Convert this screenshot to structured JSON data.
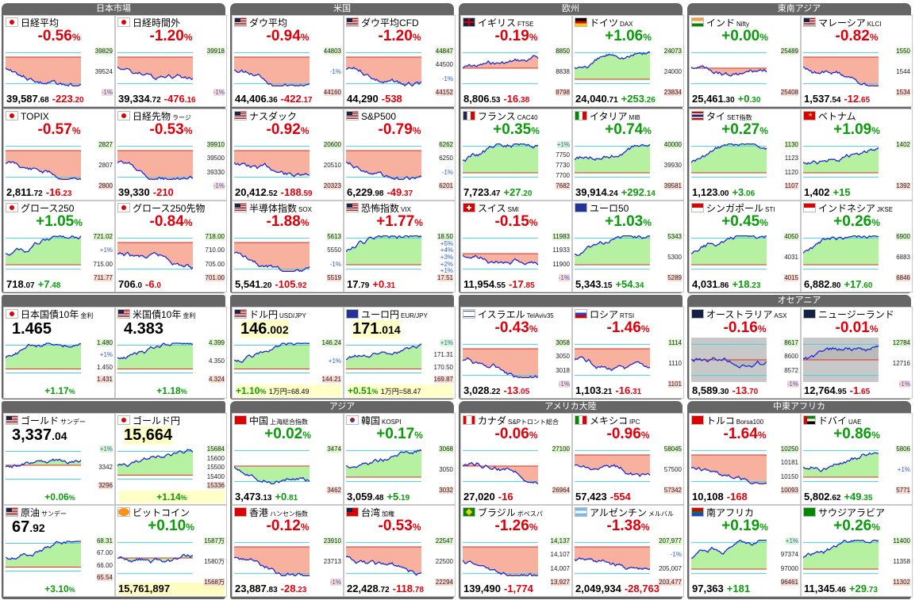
{
  "sections": [
    {
      "title": "日本市場"
    },
    {
      "title": "米国"
    },
    {
      "title": "欧州"
    },
    {
      "title": "東南アジア"
    },
    {
      "title": "オセアニア"
    },
    {
      "title": "アジア"
    },
    {
      "title": "アメリカ大陸"
    },
    {
      "title": "中東アフリカ"
    }
  ],
  "tiles": [
    {
      "name": "日経平均",
      "sub": "",
      "flag": "jp",
      "pct": "-0.56",
      "dir": "dn",
      "price": "39,587",
      "dec": ".68",
      "chg": "-223",
      "chgdec": ".20",
      "labels": [
        "39829",
        "39524",
        "-1%"
      ],
      "wm": "",
      "trend": "down"
    },
    {
      "name": "日経時間外",
      "sub": "",
      "flag": "jp",
      "pct": "-1.20",
      "dir": "dn",
      "price": "39,334",
      "dec": ".72",
      "chg": "-476",
      "chgdec": ".16",
      "labels": [
        "39918",
        "-1%"
      ],
      "wm": "",
      "trend": "down",
      "hl": true
    },
    {
      "name": "ダウ平均",
      "sub": "",
      "flag": "us",
      "pct": "-0.94",
      "dir": "dn",
      "price": "44,406",
      "dec": ".36",
      "chg": "-422",
      "chgdec": ".17",
      "labels": [
        "44803",
        "-1%",
        "44160"
      ],
      "wm": "",
      "trend": "down"
    },
    {
      "name": "ダウ平均CFD",
      "sub": "",
      "flag": "us",
      "pct": "-1.20",
      "dir": "dn",
      "price": "44,290",
      "dec": "",
      "chg": "-538",
      "chgdec": "",
      "labels": [
        "44847",
        "44500",
        "-1%",
        "44152"
      ],
      "wm": "",
      "trend": "down"
    },
    {
      "name": "イギリス",
      "sub": "FTSE",
      "flag": "gb",
      "pct": "-0.19",
      "dir": "dn",
      "price": "8,806",
      "dec": ".53",
      "chg": "-16",
      "chgdec": ".38",
      "labels": [
        "8850",
        "8838",
        "8798"
      ],
      "wm": "",
      "trend": "flat"
    },
    {
      "name": "ドイツ",
      "sub": "DAX",
      "flag": "de",
      "pct": "+1.06",
      "dir": "up",
      "price": "24,040",
      "dec": ".71",
      "chg": "+253",
      "chgdec": ".26",
      "labels": [
        "24073",
        "24000",
        "23834"
      ],
      "wm": "",
      "trend": "up"
    },
    {
      "name": "インド",
      "sub": "Nifty",
      "flag": "in",
      "pct": "+0.00",
      "dir": "fl",
      "price": "25,461",
      "dec": ".30",
      "chg": "+0",
      "chgdec": ".30",
      "labels": [
        "25489",
        "25408"
      ],
      "wm": "",
      "trend": "flat"
    },
    {
      "name": "マレーシア",
      "sub": "KLCI",
      "flag": "my",
      "pct": "-0.82",
      "dir": "dn",
      "price": "1,537",
      "dec": ".54",
      "chg": "-12",
      "chgdec": ".65",
      "labels": [
        "1550",
        "1544",
        "1534"
      ],
      "wm": "",
      "trend": "down"
    },
    {
      "name": "TOPIX",
      "sub": "",
      "flag": "jp",
      "pct": "-0.57",
      "dir": "dn",
      "price": "2,811",
      "dec": ".72",
      "chg": "-16",
      "chgdec": ".23",
      "labels": [
        "2827",
        "2807",
        "2800"
      ],
      "wm": "",
      "trend": "down"
    },
    {
      "name": "日経先物",
      "sub": "ラージ",
      "flag": "jp",
      "pct": "-0.53",
      "dir": "dn",
      "price": "39,330",
      "dec": "",
      "chg": "-210",
      "chgdec": "",
      "labels": [
        "39910",
        "39500",
        "39330",
        "-1%"
      ],
      "wm": "",
      "trend": "down"
    },
    {
      "name": "ナスダック",
      "sub": "",
      "flag": "us",
      "pct": "-0.92",
      "dir": "dn",
      "price": "20,412",
      "dec": ".52",
      "chg": "-188",
      "chgdec": ".59",
      "labels": [
        "20600",
        "20510",
        "20323"
      ],
      "wm": "",
      "trend": "down"
    },
    {
      "name": "S&P500",
      "sub": "",
      "flag": "us",
      "pct": "-0.79",
      "dir": "dn",
      "price": "6,229",
      "dec": ".98",
      "chg": "-49",
      "chgdec": ".37",
      "labels": [
        "6262",
        "6250",
        "-1%",
        "6201"
      ],
      "wm": "",
      "trend": "down"
    },
    {
      "name": "フランス",
      "sub": "CAC40",
      "flag": "fr",
      "pct": "+0.35",
      "dir": "up",
      "price": "7,723",
      "dec": ".47",
      "chg": "+27",
      "chgdec": ".20",
      "labels": [
        "+1%",
        "7750",
        "7730",
        "7700",
        "7682"
      ],
      "wm": "",
      "trend": "up"
    },
    {
      "name": "イタリア",
      "sub": "MIB",
      "flag": "it",
      "pct": "+0.74",
      "dir": "up",
      "price": "39,914",
      "dec": ".24",
      "chg": "+292",
      "chgdec": ".14",
      "labels": [
        "40000",
        "39930",
        "39581"
      ],
      "wm": "",
      "trend": "up"
    },
    {
      "name": "タイ",
      "sub": "SET指数",
      "flag": "th",
      "pct": "+0.27",
      "dir": "up",
      "price": "1,123",
      "dec": ".00",
      "chg": "+3",
      "chgdec": ".06",
      "labels": [
        "1130",
        "1123",
        "1120",
        "1107"
      ],
      "wm": "",
      "trend": "up"
    },
    {
      "name": "ベトナム",
      "sub": "",
      "flag": "vn",
      "pct": "+1.09",
      "dir": "up",
      "price": "1,402",
      "dec": "",
      "chg": "+15",
      "chgdec": "",
      "labels": [
        "1402",
        "1392"
      ],
      "wm": "",
      "trend": "up"
    },
    {
      "name": "グロース250",
      "sub": "",
      "flag": "jp",
      "pct": "+1.05",
      "dir": "up",
      "price": "718",
      "dec": ".07",
      "chg": "+7",
      "chgdec": ".48",
      "labels": [
        "721.02",
        "+1%",
        "715.00",
        "711.77"
      ],
      "wm": "",
      "trend": "up"
    },
    {
      "name": "グロース250先物",
      "sub": "",
      "flag": "jp",
      "pct": "-0.84",
      "dir": "dn",
      "price": "706",
      "dec": ".0",
      "chg": "-6",
      "chgdec": ".0",
      "labels": [
        "718.00",
        "710.00",
        "705.00",
        "701.00"
      ],
      "wm": "",
      "trend": "down"
    },
    {
      "name": "半導体指数",
      "sub": "SOX",
      "flag": "us",
      "pct": "-1.88",
      "dir": "dn",
      "price": "5,541",
      "dec": ".20",
      "chg": "-105",
      "chgdec": ".92",
      "labels": [
        "5613",
        "5550",
        "-1%",
        "5519"
      ],
      "wm": "",
      "trend": "down"
    },
    {
      "name": "恐怖指数",
      "sub": "VIX",
      "flag": "us",
      "pct": "+1.77",
      "dir": "dn",
      "price": "17",
      "dec": ".79",
      "chg": "+0",
      "chgdec": ".31",
      "labels": [
        "18.50",
        "+5%",
        "+4%",
        "+3%",
        "+2%",
        "+1%",
        "17.51"
      ],
      "wm": "",
      "trend": "up"
    },
    {
      "name": "スイス",
      "sub": "SMI",
      "flag": "ch",
      "pct": "-0.15",
      "dir": "dn",
      "price": "11,954",
      "dec": ".55",
      "chg": "-17",
      "chgdec": ".85",
      "labels": [
        "11983",
        "11933",
        "11900",
        "-1%"
      ],
      "wm": "",
      "trend": "flat"
    },
    {
      "name": "ユーロ50",
      "sub": "",
      "flag": "eu",
      "pct": "+1.03",
      "dir": "up",
      "price": "5,343",
      "dec": ".15",
      "chg": "+54",
      "chgdec": ".34",
      "labels": [
        "5343",
        "5300",
        "5289"
      ],
      "wm": "",
      "trend": "up"
    },
    {
      "name": "シンガポール",
      "sub": "STI",
      "flag": "sg",
      "pct": "+0.45",
      "dir": "up",
      "price": "4,031",
      "dec": ".86",
      "chg": "+18",
      "chgdec": ".23",
      "labels": [
        "4050",
        "4031",
        "4015"
      ],
      "wm": "",
      "trend": "up"
    },
    {
      "name": "インドネシア",
      "sub": "JKSE",
      "flag": "id",
      "pct": "+0.26",
      "dir": "up",
      "price": "6,882",
      "dec": ".80",
      "chg": "+17",
      "chgdec": ".60",
      "labels": [
        "6900",
        "6883",
        "6846"
      ],
      "wm": "",
      "trend": "up"
    },
    {
      "name": "日本国債10年",
      "sub": "金利",
      "flag": "jp",
      "big": "1.465",
      "bigdec": "",
      "foot": "+1.17",
      "dir": "up",
      "labels": [
        "1.480",
        "+1%",
        "1.450",
        "1.431"
      ],
      "trend": "up",
      "mode": "rate"
    },
    {
      "name": "米国債10年",
      "sub": "金利",
      "flag": "us",
      "big": "4.383",
      "bigdec": "",
      "foot": "+1.18",
      "dir": "up",
      "labels": [
        "4.399",
        "4.350",
        "4.324"
      ],
      "trend": "up",
      "mode": "rate"
    },
    {
      "name": "ドル円",
      "sub": "USD/JPY",
      "flag": "us",
      "big": "146",
      "bigdec": ".002",
      "foot": "+1.10",
      "extra": "1万円=68.49",
      "dir": "up",
      "labels": [
        "146.24",
        "+1%",
        "144.21"
      ],
      "trend": "up",
      "mode": "fx"
    },
    {
      "name": "ユーロ円",
      "sub": "EUR/JPY",
      "flag": "eu",
      "big": "171",
      "bigdec": ".014",
      "foot": "+0.51",
      "extra": "1万円=58.47",
      "dir": "up",
      "labels": [
        "+1%",
        "171.31",
        "170.50",
        "169.87"
      ],
      "trend": "up",
      "mode": "fx"
    },
    {
      "name": "イスラエル",
      "sub": "TelAviv35",
      "flag": "il",
      "pct": "-0.43",
      "dir": "dn",
      "price": "3,028",
      "dec": ".22",
      "chg": "-13",
      "chgdec": ".05",
      "labels": [
        "3058",
        "3050",
        "3018",
        "-1%"
      ],
      "wm": "",
      "trend": "down"
    },
    {
      "name": "ロシア",
      "sub": "RTSI",
      "flag": "ru",
      "pct": "-1.46",
      "dir": "dn",
      "price": "1,103",
      "dec": ".21",
      "chg": "-16",
      "chgdec": ".31",
      "labels": [
        "1114",
        "1110",
        "1101"
      ],
      "wm": "",
      "trend": "down"
    },
    {
      "name": "オーストラリア",
      "sub": "ASX",
      "flag": "au",
      "pct": "-0.16",
      "dir": "dn",
      "price": "8,589",
      "dec": ".30",
      "chg": "-13",
      "chgdec": ".70",
      "labels": [
        "8617",
        "8600",
        "8572",
        "-1%"
      ],
      "wm": "",
      "trend": "flat",
      "grey": true
    },
    {
      "name": "ニュージーランド",
      "sub": "",
      "flag": "nz",
      "pct": "-0.01",
      "dir": "dn",
      "price": "12,764",
      "dec": ".95",
      "chg": "-1",
      "chgdec": ".65",
      "labels": [
        "12784",
        "12716",
        "-1%"
      ],
      "wm": "",
      "trend": "flat",
      "grey": true
    },
    {
      "name": "ゴールド",
      "sub": "サンデー",
      "flag": "us",
      "big": "3,337",
      "bigdec": ".04",
      "foot": "+0.06",
      "dir": "up",
      "labels": [
        "+1%",
        "3342",
        "3296"
      ],
      "trend": "flat",
      "mode": "rate"
    },
    {
      "name": "ゴールド円",
      "sub": "",
      "flag": "jp",
      "big": "15,664",
      "bigdec": "",
      "foot": "+1.14",
      "dir": "up",
      "labels": [
        "15684",
        "15600",
        "15500",
        "15400",
        "15336"
      ],
      "trend": "up",
      "mode": "fx"
    },
    {
      "name": "中国",
      "sub": "上海総合指数",
      "flag": "cn",
      "pct": "+0.02",
      "dir": "up",
      "price": "3,473",
      "dec": ".13",
      "chg": "+0",
      "chgdec": ".81",
      "labels": [
        "3474",
        "3462"
      ],
      "wm": "",
      "trend": "flat"
    },
    {
      "name": "韓国",
      "sub": "KOSPI",
      "flag": "kr",
      "pct": "+0.17",
      "dir": "up",
      "price": "3,059",
      "dec": ".48",
      "chg": "+5",
      "chgdec": ".19",
      "labels": [
        "3068",
        "3050",
        "3032"
      ],
      "wm": "",
      "trend": "up"
    },
    {
      "name": "カナダ",
      "sub": "S&Pトロント総合",
      "flag": "ca",
      "pct": "-0.06",
      "dir": "dn",
      "price": "27,020",
      "dec": "",
      "chg": "-16",
      "chgdec": "",
      "labels": [
        "27100",
        "26964"
      ],
      "wm": "",
      "trend": "flat"
    },
    {
      "name": "メキシコ",
      "sub": "IPC",
      "flag": "mx",
      "pct": "-0.96",
      "dir": "dn",
      "price": "57,423",
      "dec": "",
      "chg": "-554",
      "chgdec": "",
      "labels": [
        "58045",
        "57500",
        "57342"
      ],
      "wm": "",
      "trend": "down"
    },
    {
      "name": "トルコ",
      "sub": "Borsa100",
      "flag": "tr",
      "pct": "-1.64",
      "dir": "dn",
      "price": "10,108",
      "dec": "",
      "chg": "-168",
      "chgdec": "",
      "labels": [
        "10250",
        "10181",
        "10150",
        "10093"
      ],
      "wm": "",
      "trend": "down"
    },
    {
      "name": "ドバイ",
      "sub": "UAE",
      "flag": "ae",
      "pct": "+0.86",
      "dir": "up",
      "price": "5,802",
      "dec": ".62",
      "chg": "+49",
      "chgdec": ".35",
      "labels": [
        "5806",
        "+1%",
        "5771"
      ],
      "wm": "",
      "trend": "up"
    },
    {
      "name": "原油",
      "sub": "サンデー",
      "flag": "us",
      "big": "67",
      "bigdec": ".92",
      "foot": "+3.10",
      "dir": "up",
      "labels": [
        "68.31",
        "67.00",
        "66.00",
        "65.54"
      ],
      "trend": "up",
      "mode": "rate"
    },
    {
      "name": "ビットコイン",
      "sub": "",
      "flag": "btc",
      "pct": "+0.10",
      "dir": "up",
      "price": "15,761,897",
      "dec": "",
      "chg": "",
      "chgdec": "",
      "labels": [
        "1587万",
        "1580万",
        "1568万"
      ],
      "wm": "",
      "trend": "flat",
      "hlfoot": true
    },
    {
      "name": "香港",
      "sub": "ハンセン指数",
      "flag": "hk",
      "pct": "-0.12",
      "dir": "dn",
      "price": "23,887",
      "dec": ".83",
      "chg": "-28",
      "chgdec": ".23",
      "labels": [
        "23910",
        "23713",
        "-1%"
      ],
      "wm": "",
      "trend": "down"
    },
    {
      "name": "台湾",
      "sub": "加権",
      "flag": "tw",
      "pct": "-0.53",
      "dir": "dn",
      "price": "22,428",
      "dec": ".72",
      "chg": "-118",
      "chgdec": ".78",
      "labels": [
        "22547",
        "22500",
        "22294"
      ],
      "wm": "",
      "trend": "down"
    },
    {
      "name": "ブラジル",
      "sub": "ボベスパ",
      "flag": "br",
      "pct": "-1.26",
      "dir": "dn",
      "price": "139,490",
      "dec": "",
      "chg": "-1,774",
      "chgdec": "",
      "labels": [
        "14,137",
        "14,107",
        "14,007",
        "13,927"
      ],
      "wm": "",
      "trend": "down"
    },
    {
      "name": "アルゼンチン",
      "sub": "メルバル",
      "flag": "ar",
      "pct": "-1.38",
      "dir": "dn",
      "price": "2,049,934",
      "dec": "",
      "chg": "-28,763",
      "chgdec": "",
      "labels": [
        "207,977",
        "-1%",
        "205,007",
        "203,477"
      ],
      "wm": "",
      "trend": "down"
    },
    {
      "name": "南アフリカ",
      "sub": "",
      "flag": "za",
      "pct": "+0.19",
      "dir": "up",
      "price": "97,363",
      "dec": "",
      "chg": "+181",
      "chgdec": "",
      "labels": [
        "+1%",
        "97374",
        "97000",
        "96461"
      ],
      "wm": "",
      "trend": "up"
    },
    {
      "name": "サウジアラビア",
      "sub": "",
      "flag": "sa",
      "pct": "+0.26",
      "dir": "up",
      "price": "11,345",
      "dec": ".46",
      "chg": "+29",
      "chgdec": ".73",
      "labels": [
        "11400",
        "11358",
        "11302"
      ],
      "wm": "",
      "trend": "up"
    }
  ],
  "colors": {
    "up": "#0a9c0a",
    "down": "#e0000a",
    "panel": "#666666"
  }
}
